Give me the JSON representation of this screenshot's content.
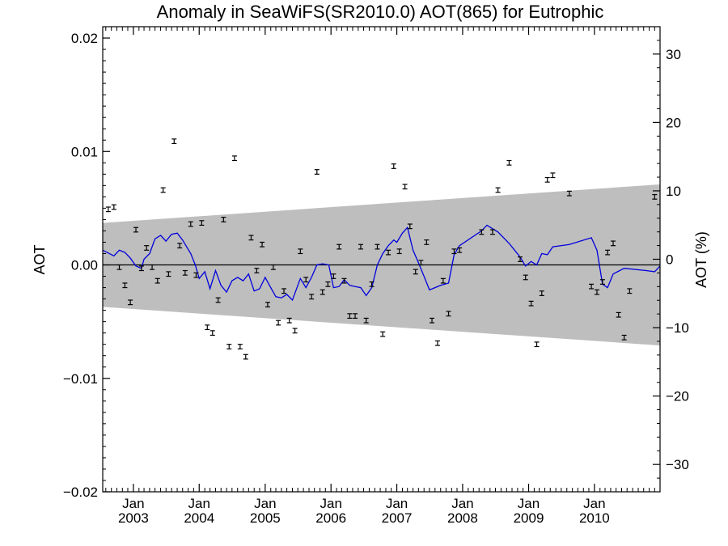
{
  "chart_data": {
    "type": "scatter",
    "title": "Anomaly in SeaWiFS(SR2010.0) AOT(865) for Eutrophic",
    "ylabel": "AOT",
    "ylabel_right": "AOT (%)",
    "xlabel": "",
    "xlim": [
      "2002-07-15",
      "2010-12-31"
    ],
    "ylim": [
      -0.02,
      0.021
    ],
    "ylim_right": [
      -34,
      34
    ],
    "grid": false,
    "y_ticks": [
      {
        "value": 0.02,
        "label": "0.02"
      },
      {
        "value": 0.01,
        "label": "0.01"
      },
      {
        "value": 0.0,
        "label": "0.00"
      },
      {
        "value": -0.01,
        "label": "−0.01"
      },
      {
        "value": -0.02,
        "label": "−0.02"
      }
    ],
    "y_right_ticks": [
      {
        "value": 30,
        "label": "30"
      },
      {
        "value": 20,
        "label": "20"
      },
      {
        "value": 10,
        "label": "10"
      },
      {
        "value": 0,
        "label": "0"
      },
      {
        "value": -10,
        "label": "−10"
      },
      {
        "value": -20,
        "label": "−20"
      },
      {
        "value": -30,
        "label": "−30"
      }
    ],
    "x_ticks": [
      {
        "date": "2003-01-01",
        "month": "Jan",
        "year": "2003"
      },
      {
        "date": "2004-01-01",
        "month": "Jan",
        "year": "2004"
      },
      {
        "date": "2005-01-01",
        "month": "Jan",
        "year": "2005"
      },
      {
        "date": "2006-01-01",
        "month": "Jan",
        "year": "2006"
      },
      {
        "date": "2007-01-01",
        "month": "Jan",
        "year": "2007"
      },
      {
        "date": "2008-01-01",
        "month": "Jan",
        "year": "2008"
      },
      {
        "date": "2009-01-01",
        "month": "Jan",
        "year": "2009"
      },
      {
        "date": "2010-01-01",
        "month": "Jan",
        "year": "2010"
      }
    ],
    "band": {
      "start": "2002-07-15",
      "end": "2010-12-31",
      "upper_start": 0.0037,
      "upper_end": 0.0071,
      "lower_start": -0.0037,
      "lower_end": -0.0071,
      "color": "#bebebe"
    },
    "reference_line": {
      "y": 0.0,
      "color": "#000000"
    },
    "series": [
      {
        "style": "errorbar",
        "color": "#000000",
        "points": [
          {
            "x": "2002-08-15",
            "y": 0.0049
          },
          {
            "x": "2002-09-15",
            "y": 0.0051
          },
          {
            "x": "2002-10-15",
            "y": -0.0002
          },
          {
            "x": "2002-11-15",
            "y": -0.0018
          },
          {
            "x": "2002-12-15",
            "y": -0.0033
          },
          {
            "x": "2003-01-15",
            "y": 0.0031
          },
          {
            "x": "2003-02-15",
            "y": -0.0003
          },
          {
            "x": "2003-03-15",
            "y": 0.0015
          },
          {
            "x": "2003-04-15",
            "y": -0.0002
          },
          {
            "x": "2003-05-15",
            "y": -0.0014
          },
          {
            "x": "2003-06-15",
            "y": 0.0066
          },
          {
            "x": "2003-07-15",
            "y": -0.0008
          },
          {
            "x": "2003-08-15",
            "y": 0.0109
          },
          {
            "x": "2003-09-15",
            "y": 0.0017
          },
          {
            "x": "2003-10-15",
            "y": -0.0007
          },
          {
            "x": "2003-11-15",
            "y": 0.0036
          },
          {
            "x": "2003-12-15",
            "y": -0.0009
          },
          {
            "x": "2004-01-15",
            "y": 0.0037
          },
          {
            "x": "2004-02-15",
            "y": -0.0055
          },
          {
            "x": "2004-03-15",
            "y": -0.006
          },
          {
            "x": "2004-04-15",
            "y": -0.0031
          },
          {
            "x": "2004-05-15",
            "y": 0.004
          },
          {
            "x": "2004-06-15",
            "y": -0.0072
          },
          {
            "x": "2004-07-15",
            "y": 0.0094
          },
          {
            "x": "2004-08-15",
            "y": -0.0072
          },
          {
            "x": "2004-09-15",
            "y": -0.0081
          },
          {
            "x": "2004-10-15",
            "y": 0.0024
          },
          {
            "x": "2004-11-15",
            "y": -0.0005
          },
          {
            "x": "2004-12-15",
            "y": 0.0018
          },
          {
            "x": "2005-01-15",
            "y": -0.0035
          },
          {
            "x": "2005-02-15",
            "y": -0.0002
          },
          {
            "x": "2005-03-15",
            "y": -0.0051
          },
          {
            "x": "2005-04-15",
            "y": -0.0023
          },
          {
            "x": "2005-05-15",
            "y": -0.0049
          },
          {
            "x": "2005-06-15",
            "y": -0.0058
          },
          {
            "x": "2005-07-15",
            "y": 0.0012
          },
          {
            "x": "2005-08-15",
            "y": -0.0013
          },
          {
            "x": "2005-09-15",
            "y": -0.0028
          },
          {
            "x": "2005-10-15",
            "y": 0.0082
          },
          {
            "x": "2005-11-15",
            "y": -0.0024
          },
          {
            "x": "2005-12-15",
            "y": -0.0017
          },
          {
            "x": "2006-01-15",
            "y": -0.001
          },
          {
            "x": "2006-02-15",
            "y": 0.0016
          },
          {
            "x": "2006-03-15",
            "y": -0.0014
          },
          {
            "x": "2006-04-15",
            "y": -0.0045
          },
          {
            "x": "2006-05-15",
            "y": -0.0045
          },
          {
            "x": "2006-06-15",
            "y": 0.0016
          },
          {
            "x": "2006-07-15",
            "y": -0.0049
          },
          {
            "x": "2006-08-15",
            "y": -0.0017
          },
          {
            "x": "2006-09-15",
            "y": 0.0016
          },
          {
            "x": "2006-10-15",
            "y": -0.0061
          },
          {
            "x": "2006-11-15",
            "y": 0.0011
          },
          {
            "x": "2006-12-15",
            "y": 0.0087
          },
          {
            "x": "2007-01-15",
            "y": 0.0012
          },
          {
            "x": "2007-02-15",
            "y": 0.0069
          },
          {
            "x": "2007-03-15",
            "y": 0.0034
          },
          {
            "x": "2007-04-15",
            "y": -0.0006
          },
          {
            "x": "2007-05-15",
            "y": 0.0002
          },
          {
            "x": "2007-06-15",
            "y": 0.002
          },
          {
            "x": "2007-07-15",
            "y": -0.0049
          },
          {
            "x": "2007-08-15",
            "y": -0.0069
          },
          {
            "x": "2007-09-15",
            "y": -0.0014
          },
          {
            "x": "2007-10-15",
            "y": -0.0043
          },
          {
            "x": "2007-11-15",
            "y": 0.0012
          },
          {
            "x": "2007-12-15",
            "y": 0.0013
          },
          {
            "x": "2008-04-15",
            "y": 0.0029
          },
          {
            "x": "2008-06-15",
            "y": 0.0029
          },
          {
            "x": "2008-07-15",
            "y": 0.0066
          },
          {
            "x": "2008-09-15",
            "y": 0.009
          },
          {
            "x": "2008-11-15",
            "y": 0.0005
          },
          {
            "x": "2008-12-15",
            "y": -0.0011
          },
          {
            "x": "2009-01-15",
            "y": -0.0034
          },
          {
            "x": "2009-02-15",
            "y": -0.007
          },
          {
            "x": "2009-03-15",
            "y": -0.0025
          },
          {
            "x": "2009-04-15",
            "y": 0.0075
          },
          {
            "x": "2009-05-15",
            "y": 0.0079
          },
          {
            "x": "2009-08-15",
            "y": 0.0063
          },
          {
            "x": "2009-12-15",
            "y": -0.0019
          },
          {
            "x": "2010-01-15",
            "y": -0.0024
          },
          {
            "x": "2010-02-15",
            "y": -0.0015
          },
          {
            "x": "2010-03-15",
            "y": 0.0011
          },
          {
            "x": "2010-04-15",
            "y": 0.0019
          },
          {
            "x": "2010-05-15",
            "y": -0.0044
          },
          {
            "x": "2010-06-15",
            "y": -0.0064
          },
          {
            "x": "2010-07-15",
            "y": -0.0023
          },
          {
            "x": "2010-12-01",
            "y": 0.006
          }
        ],
        "error": 0.0002
      },
      {
        "style": "line",
        "color": "#0000dd",
        "points": [
          {
            "x": "2002-07-15",
            "y": 0.0013
          },
          {
            "x": "2002-09-15",
            "y": 0.0008
          },
          {
            "x": "2002-10-15",
            "y": 0.0013
          },
          {
            "x": "2002-11-15",
            "y": 0.0011
          },
          {
            "x": "2002-12-15",
            "y": 0.0006
          },
          {
            "x": "2003-01-15",
            "y": -0.0001
          },
          {
            "x": "2003-02-15",
            "y": -0.0003
          },
          {
            "x": "2003-03-01",
            "y": 0.0005
          },
          {
            "x": "2003-04-01",
            "y": 0.001
          },
          {
            "x": "2003-05-01",
            "y": 0.0023
          },
          {
            "x": "2003-06-01",
            "y": 0.0026
          },
          {
            "x": "2003-07-01",
            "y": 0.0021
          },
          {
            "x": "2003-08-01",
            "y": 0.0027
          },
          {
            "x": "2003-09-01",
            "y": 0.0028
          },
          {
            "x": "2003-10-01",
            "y": 0.0022
          },
          {
            "x": "2003-11-15",
            "y": 0.001
          },
          {
            "x": "2003-12-10",
            "y": 0.0
          },
          {
            "x": "2004-01-01",
            "y": -0.0012
          },
          {
            "x": "2004-02-01",
            "y": -0.0006
          },
          {
            "x": "2004-03-01",
            "y": -0.0021
          },
          {
            "x": "2004-04-01",
            "y": -0.0005
          },
          {
            "x": "2004-05-01",
            "y": -0.0018
          },
          {
            "x": "2004-06-01",
            "y": -0.0024
          },
          {
            "x": "2004-07-01",
            "y": -0.0014
          },
          {
            "x": "2004-08-01",
            "y": -0.0011
          },
          {
            "x": "2004-09-01",
            "y": -0.0014
          },
          {
            "x": "2004-10-01",
            "y": -0.0008
          },
          {
            "x": "2004-11-01",
            "y": -0.0023
          },
          {
            "x": "2004-12-01",
            "y": -0.0021
          },
          {
            "x": "2005-01-01",
            "y": -0.0011
          },
          {
            "x": "2005-02-01",
            "y": -0.002
          },
          {
            "x": "2005-03-01",
            "y": -0.0028
          },
          {
            "x": "2005-04-01",
            "y": -0.0029
          },
          {
            "x": "2005-05-01",
            "y": -0.0026
          },
          {
            "x": "2005-06-01",
            "y": -0.0031
          },
          {
            "x": "2005-07-15",
            "y": -0.0012
          },
          {
            "x": "2005-08-15",
            "y": -0.002
          },
          {
            "x": "2005-09-15",
            "y": -0.0011
          },
          {
            "x": "2005-10-15",
            "y": 0.0
          },
          {
            "x": "2005-11-15",
            "y": 0.0001
          },
          {
            "x": "2005-12-20",
            "y": 0.0
          },
          {
            "x": "2006-01-15",
            "y": -0.002
          },
          {
            "x": "2006-02-15",
            "y": -0.0019
          },
          {
            "x": "2006-03-15",
            "y": -0.0013
          },
          {
            "x": "2006-04-15",
            "y": -0.0018
          },
          {
            "x": "2006-05-15",
            "y": -0.0019
          },
          {
            "x": "2006-06-15",
            "y": -0.002
          },
          {
            "x": "2006-07-15",
            "y": -0.0027
          },
          {
            "x": "2006-08-15",
            "y": -0.002
          },
          {
            "x": "2006-09-15",
            "y": 0.0
          },
          {
            "x": "2006-10-15",
            "y": 0.001
          },
          {
            "x": "2006-11-15",
            "y": 0.0017
          },
          {
            "x": "2006-12-15",
            "y": 0.0022
          },
          {
            "x": "2007-01-01",
            "y": 0.002
          },
          {
            "x": "2007-02-01",
            "y": 0.0028
          },
          {
            "x": "2007-03-01",
            "y": 0.0033
          },
          {
            "x": "2007-04-01",
            "y": 0.0013
          },
          {
            "x": "2007-05-01",
            "y": 0.0002
          },
          {
            "x": "2007-06-01",
            "y": -0.001
          },
          {
            "x": "2007-07-01",
            "y": -0.0022
          },
          {
            "x": "2007-08-01",
            "y": -0.002
          },
          {
            "x": "2007-09-01",
            "y": -0.0018
          },
          {
            "x": "2007-10-15",
            "y": -0.0016
          },
          {
            "x": "2007-11-15",
            "y": 0.0009
          },
          {
            "x": "2007-12-15",
            "y": 0.0017
          },
          {
            "x": "2008-04-15",
            "y": 0.003
          },
          {
            "x": "2008-05-15",
            "y": 0.0035
          },
          {
            "x": "2008-07-15",
            "y": 0.0029
          },
          {
            "x": "2008-09-15",
            "y": 0.0019
          },
          {
            "x": "2008-11-15",
            "y": 0.0007
          },
          {
            "x": "2008-12-15",
            "y": -0.0001
          },
          {
            "x": "2009-01-15",
            "y": 0.0003
          },
          {
            "x": "2009-02-15",
            "y": 0.0
          },
          {
            "x": "2009-03-15",
            "y": 0.001
          },
          {
            "x": "2009-04-15",
            "y": 0.0009
          },
          {
            "x": "2009-05-15",
            "y": 0.0016
          },
          {
            "x": "2009-08-15",
            "y": 0.0018
          },
          {
            "x": "2009-12-15",
            "y": 0.0024
          },
          {
            "x": "2010-01-15",
            "y": 0.0013
          },
          {
            "x": "2010-02-15",
            "y": -0.0017
          },
          {
            "x": "2010-03-15",
            "y": -0.002
          },
          {
            "x": "2010-04-15",
            "y": -0.0008
          },
          {
            "x": "2010-06-15",
            "y": -0.0003
          },
          {
            "x": "2010-10-15",
            "y": -0.0005
          },
          {
            "x": "2010-12-01",
            "y": -0.0006
          },
          {
            "x": "2010-12-31",
            "y": -0.0001
          }
        ]
      }
    ]
  }
}
